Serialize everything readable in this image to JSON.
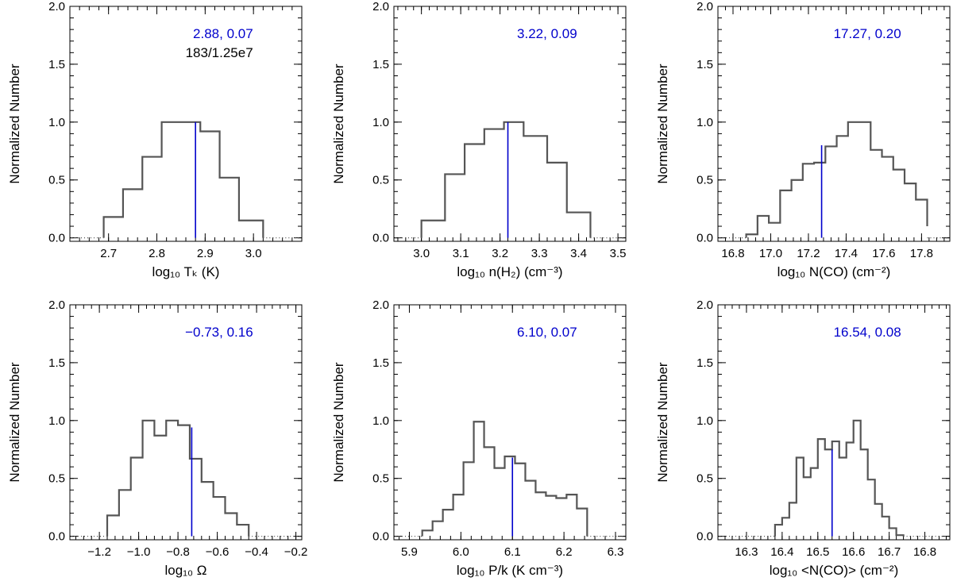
{
  "colors": {
    "hist": "#555555",
    "median": "#0000cc",
    "stat": "#0000cc",
    "note": "#000000",
    "frame": "#000000"
  },
  "chart_data": [
    {
      "type": "histogram",
      "xlabel": "log₁₀ Tₖ (K)",
      "ylabel": "Normalized Number",
      "xlim": [
        2.62,
        3.1
      ],
      "xticks": [
        "2.7",
        "2.8",
        "2.9",
        "3.0"
      ],
      "ylim": [
        -0.03,
        2.0
      ],
      "yticks": [
        "0.0",
        "0.5",
        "1.0",
        "1.5",
        "2.0"
      ],
      "bin_edges": [
        2.69,
        2.73,
        2.77,
        2.81,
        2.85,
        2.89,
        2.93,
        2.97,
        3.02
      ],
      "values": [
        0.18,
        0.42,
        0.7,
        1.0,
        1.0,
        0.92,
        0.52,
        0.15
      ],
      "median": 2.88,
      "median_height": 1.0,
      "stat_text": "2.88, 0.07",
      "note_text": "183/1.25e7"
    },
    {
      "type": "histogram",
      "xlabel": "log₁₀ n(H₂) (cm⁻³)",
      "ylabel": "Normalized Number",
      "xlim": [
        2.93,
        3.52
      ],
      "xticks": [
        "3.0",
        "3.1",
        "3.2",
        "3.3",
        "3.4",
        "3.5"
      ],
      "ylim": [
        -0.03,
        2.0
      ],
      "yticks": [
        "0.0",
        "0.5",
        "1.0",
        "1.5",
        "2.0"
      ],
      "bin_edges": [
        3.0,
        3.06,
        3.11,
        3.16,
        3.21,
        3.26,
        3.32,
        3.37,
        3.43
      ],
      "values": [
        0.15,
        0.55,
        0.81,
        0.94,
        1.0,
        0.88,
        0.65,
        0.22
      ],
      "median": 3.22,
      "median_height": 1.0,
      "stat_text": "3.22, 0.09"
    },
    {
      "type": "histogram",
      "xlabel": "log₁₀ N(CO) (cm⁻²)",
      "ylabel": "Normalized Number",
      "xlim": [
        16.72,
        17.95
      ],
      "xticks": [
        "16.8",
        "17.0",
        "17.2",
        "17.4",
        "17.6",
        "17.8"
      ],
      "ylim": [
        -0.03,
        2.0
      ],
      "yticks": [
        "0.0",
        "0.5",
        "1.0",
        "1.5",
        "2.0"
      ],
      "bin_edges": [
        16.87,
        16.93,
        16.99,
        17.05,
        17.11,
        17.17,
        17.23,
        17.29,
        17.35,
        17.41,
        17.47,
        17.53,
        17.59,
        17.65,
        17.71,
        17.77,
        17.83
      ],
      "values": [
        0.03,
        0.19,
        0.13,
        0.41,
        0.5,
        0.64,
        0.65,
        0.79,
        0.88,
        1.0,
        1.0,
        0.76,
        0.7,
        0.59,
        0.47,
        0.33,
        0.1
      ],
      "median": 17.27,
      "median_height": 0.8,
      "stat_text": "17.27, 0.20"
    },
    {
      "type": "histogram",
      "xlabel": "log₁₀ Ω",
      "ylabel": "Normalized Number",
      "xlim": [
        -1.35,
        -0.17
      ],
      "xticks": [
        "−1.2",
        "−1.0",
        "−0.8",
        "−0.6",
        "−0.4",
        "−0.2"
      ],
      "ylim": [
        -0.03,
        2.0
      ],
      "yticks": [
        "0.0",
        "0.5",
        "1.0",
        "1.5",
        "2.0"
      ],
      "bin_edges": [
        -1.16,
        -1.1,
        -1.04,
        -0.98,
        -0.92,
        -0.86,
        -0.8,
        -0.74,
        -0.68,
        -0.62,
        -0.56,
        -0.5,
        -0.44
      ],
      "values": [
        0.18,
        0.4,
        0.68,
        1.0,
        0.87,
        1.0,
        0.96,
        0.67,
        0.47,
        0.34,
        0.2,
        0.1
      ],
      "median": -0.73,
      "median_height": 0.94,
      "stat_text": "−0.73, 0.16"
    },
    {
      "type": "histogram",
      "xlabel": "log₁₀ P/k (K cm⁻³)",
      "ylabel": "Normalized Number",
      "xlim": [
        5.87,
        6.32
      ],
      "xticks": [
        "5.9",
        "6.0",
        "6.1",
        "6.2",
        "6.3"
      ],
      "ylim": [
        -0.03,
        2.0
      ],
      "yticks": [
        "0.0",
        "0.5",
        "1.0",
        "1.5",
        "2.0"
      ],
      "bin_edges": [
        5.925,
        5.945,
        5.965,
        5.985,
        6.005,
        6.025,
        6.045,
        6.065,
        6.085,
        6.105,
        6.125,
        6.145,
        6.165,
        6.185,
        6.205,
        6.225,
        6.245
      ],
      "values": [
        0.05,
        0.13,
        0.23,
        0.36,
        0.64,
        0.99,
        0.77,
        0.59,
        0.69,
        0.63,
        0.48,
        0.38,
        0.35,
        0.33,
        0.36,
        0.24
      ],
      "median": 6.1,
      "median_height": 0.68,
      "stat_text": "6.10, 0.07"
    },
    {
      "type": "histogram",
      "xlabel": "log₁₀ <N(CO)> (cm⁻²)",
      "ylabel": "Normalized Number",
      "xlim": [
        16.22,
        16.87
      ],
      "xticks": [
        "16.3",
        "16.4",
        "16.5",
        "16.6",
        "16.7",
        "16.8"
      ],
      "ylim": [
        -0.03,
        2.0
      ],
      "yticks": [
        "0.0",
        "0.5",
        "1.0",
        "1.5",
        "2.0"
      ],
      "bin_edges": [
        16.38,
        16.4,
        16.42,
        16.44,
        16.46,
        16.48,
        16.5,
        16.52,
        16.54,
        16.56,
        16.58,
        16.6,
        16.62,
        16.64,
        16.66,
        16.68,
        16.7,
        16.72,
        16.74
      ],
      "values": [
        0.1,
        0.16,
        0.29,
        0.68,
        0.51,
        0.59,
        0.84,
        0.75,
        0.82,
        0.68,
        0.81,
        1.0,
        0.75,
        0.49,
        0.28,
        0.17,
        0.07,
        0.01
      ],
      "median": 16.54,
      "median_height": 0.75,
      "stat_text": "16.54, 0.08"
    }
  ]
}
